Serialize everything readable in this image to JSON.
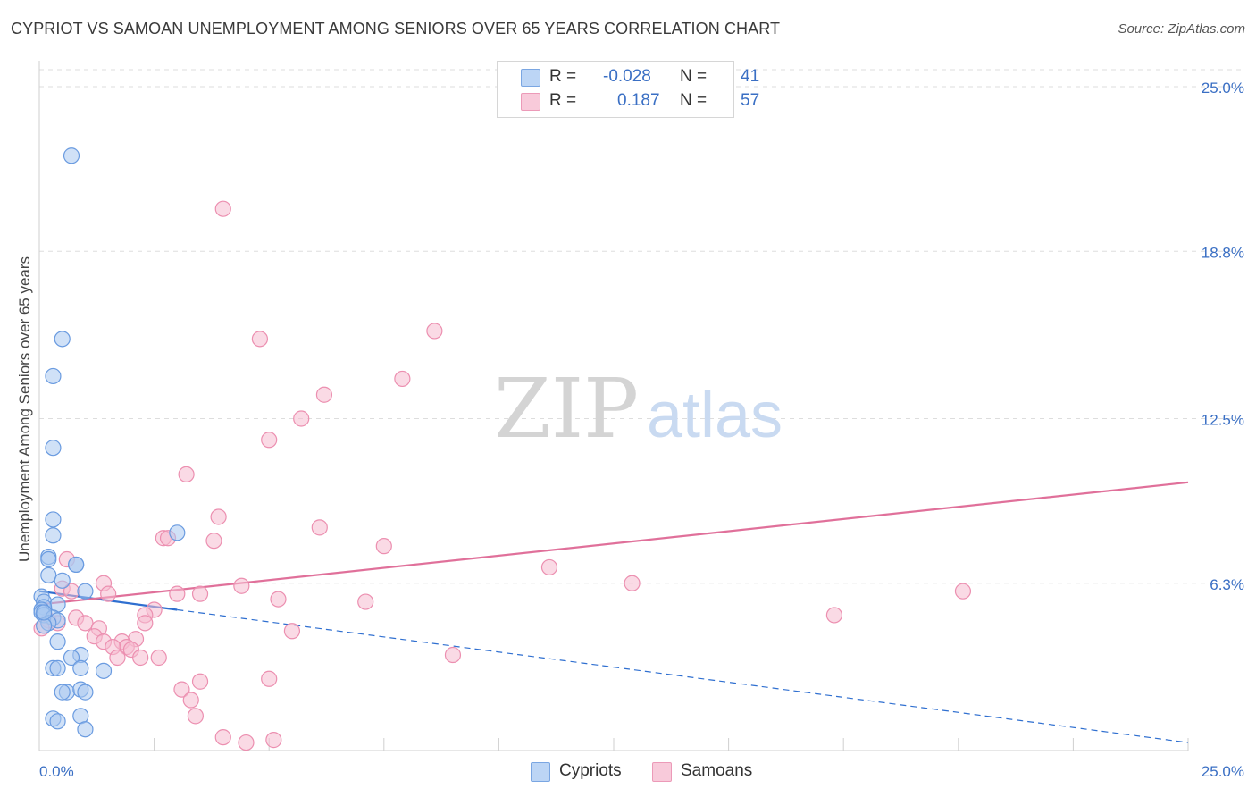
{
  "header": {
    "title": "CYPRIOT VS SAMOAN UNEMPLOYMENT AMONG SENIORS OVER 65 YEARS CORRELATION CHART",
    "source": "Source: ZipAtlas.com"
  },
  "legend": {
    "r_label": "R =",
    "n_label": "N =",
    "rows": [
      {
        "r": "-0.028",
        "n": "41"
      },
      {
        "r": "0.187",
        "n": "57"
      }
    ]
  },
  "watermark": {
    "zip": "ZIP",
    "atlas": "atlas"
  },
  "colors": {
    "cypriots_fill": "#a9c8f0",
    "cypriots_stroke": "#6a9be0",
    "cypriots_line": "#2f6fd0",
    "samoans_fill": "#f6bcd0",
    "samoans_stroke": "#ec8fb0",
    "samoans_line": "#e0709a",
    "axis_text": "#3a6fc4",
    "grid": "#dddddd"
  },
  "chart_data": {
    "type": "scatter",
    "title": "CYPRIOT VS SAMOAN UNEMPLOYMENT AMONG SENIORS OVER 65 YEARS CORRELATION CHART",
    "xlabel": "",
    "ylabel": "Unemployment Among Seniors over 65 years",
    "xlim": [
      0,
      25
    ],
    "ylim": [
      0,
      25
    ],
    "x_ticks": [
      "0.0%",
      "25.0%"
    ],
    "y_ticks": [
      {
        "value": 6.3,
        "label": "6.3%"
      },
      {
        "value": 12.5,
        "label": "12.5%"
      },
      {
        "value": 18.8,
        "label": "18.8%"
      },
      {
        "value": 25.0,
        "label": "25.0%"
      }
    ],
    "series": [
      {
        "name": "Cypriots",
        "r": -0.028,
        "n": 41,
        "trend": {
          "x0": 0.0,
          "y0": 6.0,
          "x1": 3.0,
          "y1": 5.3,
          "solid_until": 3.0,
          "extend_to": 25.0,
          "y_at_extend": 0.3
        },
        "points": [
          [
            0.7,
            22.4
          ],
          [
            0.5,
            15.5
          ],
          [
            0.3,
            14.1
          ],
          [
            0.3,
            11.4
          ],
          [
            0.3,
            8.7
          ],
          [
            0.3,
            8.1
          ],
          [
            3.0,
            8.2
          ],
          [
            0.2,
            7.3
          ],
          [
            0.2,
            7.2
          ],
          [
            0.8,
            7.0
          ],
          [
            0.8,
            7.0
          ],
          [
            0.2,
            6.6
          ],
          [
            0.5,
            6.4
          ],
          [
            1.0,
            6.0
          ],
          [
            0.05,
            5.8
          ],
          [
            0.1,
            5.6
          ],
          [
            0.4,
            5.5
          ],
          [
            0.1,
            5.4
          ],
          [
            0.05,
            5.3
          ],
          [
            0.05,
            5.2
          ],
          [
            0.1,
            5.1
          ],
          [
            0.3,
            5.0
          ],
          [
            0.4,
            4.9
          ],
          [
            0.2,
            4.8
          ],
          [
            0.1,
            4.7
          ],
          [
            0.4,
            4.1
          ],
          [
            0.9,
            3.6
          ],
          [
            0.7,
            3.5
          ],
          [
            0.3,
            3.1
          ],
          [
            0.4,
            3.1
          ],
          [
            0.9,
            3.1
          ],
          [
            1.4,
            3.0
          ],
          [
            0.6,
            2.2
          ],
          [
            0.9,
            2.3
          ],
          [
            1.0,
            2.2
          ],
          [
            0.5,
            2.2
          ],
          [
            0.3,
            1.2
          ],
          [
            0.9,
            1.3
          ],
          [
            0.4,
            1.1
          ],
          [
            1.0,
            0.8
          ],
          [
            0.1,
            5.2
          ]
        ]
      },
      {
        "name": "Samoans",
        "r": 0.187,
        "n": 57,
        "trend": {
          "x0": 0.0,
          "y0": 5.5,
          "x1": 25.0,
          "y1": 10.1
        },
        "points": [
          [
            4.0,
            20.4
          ],
          [
            8.6,
            15.8
          ],
          [
            4.8,
            15.5
          ],
          [
            7.9,
            14.0
          ],
          [
            6.2,
            13.4
          ],
          [
            5.7,
            12.5
          ],
          [
            5.0,
            11.7
          ],
          [
            3.2,
            10.4
          ],
          [
            3.9,
            8.8
          ],
          [
            6.1,
            8.4
          ],
          [
            2.7,
            8.0
          ],
          [
            2.8,
            8.0
          ],
          [
            3.8,
            7.9
          ],
          [
            7.5,
            7.7
          ],
          [
            0.6,
            7.2
          ],
          [
            11.1,
            6.9
          ],
          [
            1.4,
            6.3
          ],
          [
            4.4,
            6.2
          ],
          [
            12.9,
            6.3
          ],
          [
            0.5,
            6.1
          ],
          [
            0.7,
            6.0
          ],
          [
            20.1,
            6.0
          ],
          [
            1.5,
            5.9
          ],
          [
            3.0,
            5.9
          ],
          [
            3.5,
            5.9
          ],
          [
            5.2,
            5.7
          ],
          [
            7.1,
            5.6
          ],
          [
            17.3,
            5.1
          ],
          [
            2.5,
            5.3
          ],
          [
            2.3,
            5.1
          ],
          [
            0.8,
            5.0
          ],
          [
            0.2,
            4.9
          ],
          [
            0.4,
            4.8
          ],
          [
            1.0,
            4.8
          ],
          [
            1.3,
            4.6
          ],
          [
            2.3,
            4.8
          ],
          [
            5.5,
            4.5
          ],
          [
            1.2,
            4.3
          ],
          [
            1.4,
            4.1
          ],
          [
            2.1,
            4.2
          ],
          [
            1.8,
            4.1
          ],
          [
            1.9,
            3.9
          ],
          [
            1.6,
            3.9
          ],
          [
            2.0,
            3.8
          ],
          [
            0.05,
            4.6
          ],
          [
            1.7,
            3.5
          ],
          [
            2.2,
            3.5
          ],
          [
            2.6,
            3.5
          ],
          [
            9.0,
            3.6
          ],
          [
            3.5,
            2.6
          ],
          [
            5.0,
            2.7
          ],
          [
            3.1,
            2.3
          ],
          [
            3.3,
            1.9
          ],
          [
            3.4,
            1.3
          ],
          [
            4.0,
            0.5
          ],
          [
            4.5,
            0.3
          ],
          [
            5.1,
            0.4
          ]
        ]
      }
    ],
    "legend_position": "top-center"
  }
}
